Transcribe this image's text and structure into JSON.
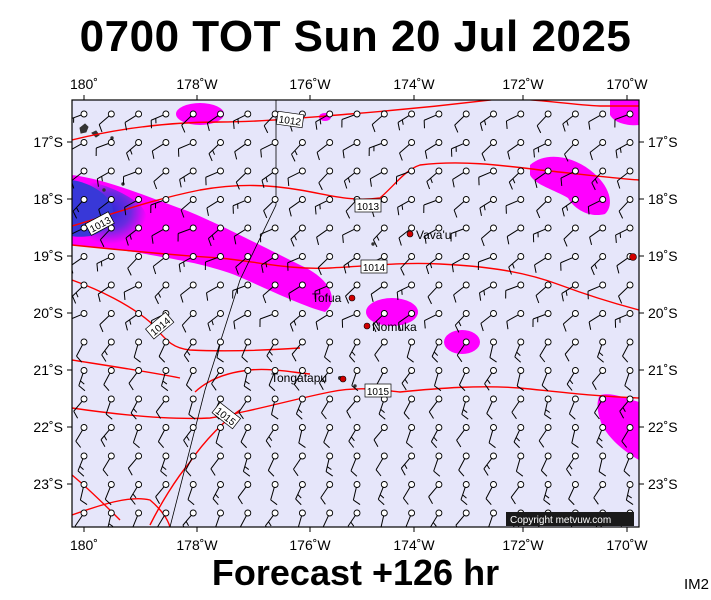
{
  "title": "0700 TOT Sun 20 Jul 2025",
  "subtitle": "Forecast +126 hr",
  "model_tag": "IM2",
  "copyright": "Copyright metvuw.com",
  "colors": {
    "background": "#e6e6fa",
    "isobar": "#ff0000",
    "rain_light": "#ff00ff",
    "rain_heavy": "#3030e0",
    "wind": "#000000",
    "town": "#d00000"
  },
  "axes": {
    "x_ticks": [
      "180˚",
      "178˚W",
      "176˚W",
      "174˚W",
      "172˚W",
      "170˚W"
    ],
    "y_ticks": [
      "17˚S",
      "18˚S",
      "19˚S",
      "20˚S",
      "21˚S",
      "22˚S",
      "23˚S"
    ]
  },
  "isobar_labels": [
    "1012",
    "1013",
    "1013",
    "1014",
    "1014",
    "1015",
    "1015"
  ],
  "places": [
    {
      "name": "Vava'u"
    },
    {
      "name": "Tofua"
    },
    {
      "name": "Nomuka"
    },
    {
      "name": "Tongatapu"
    }
  ]
}
